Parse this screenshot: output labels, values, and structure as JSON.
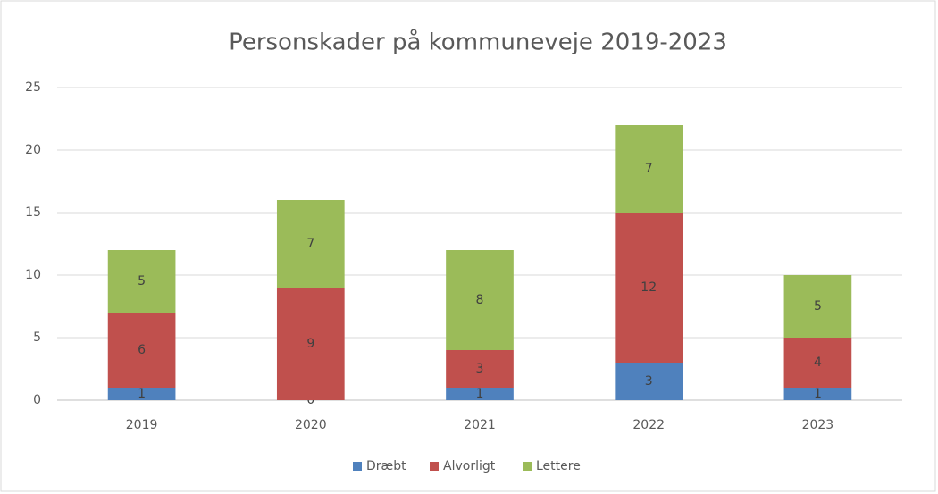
{
  "chart_data": {
    "type": "bar",
    "stacked": true,
    "title": "Personskader på kommuneveje 2019-2023",
    "categories": [
      "2019",
      "2020",
      "2021",
      "2022",
      "2023"
    ],
    "series": [
      {
        "name": "Dræbt",
        "color": "#4f81bd",
        "values": [
          1,
          0,
          1,
          3,
          1
        ]
      },
      {
        "name": "Alvorligt",
        "color": "#c0504d",
        "values": [
          6,
          9,
          3,
          12,
          4
        ]
      },
      {
        "name": "Lettere",
        "color": "#9bbb59",
        "values": [
          5,
          7,
          8,
          7,
          5
        ]
      }
    ],
    "ylim": [
      0,
      25
    ],
    "yticks": [
      0,
      5,
      10,
      15,
      20,
      25
    ],
    "grid": true,
    "legend": "bottom"
  }
}
